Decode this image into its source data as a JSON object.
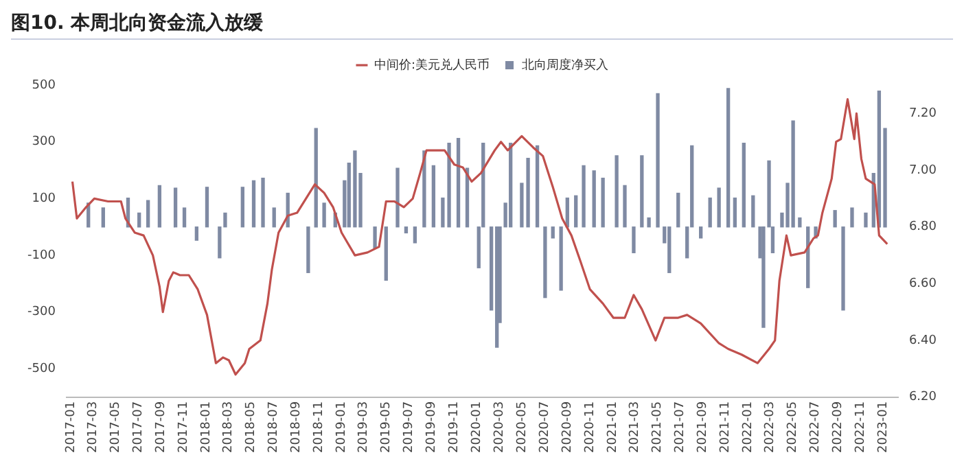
{
  "chart_data": {
    "type": "bar",
    "title": "图10. 本周北向资金流入放缓",
    "xlim": [
      "2016-12-20",
      "2023-02-10"
    ],
    "xticks": [
      "2017-01",
      "2017-03",
      "2017-05",
      "2017-07",
      "2017-09",
      "2017-11",
      "2018-01",
      "2018-03",
      "2018-05",
      "2018-07",
      "2018-09",
      "2018-11",
      "2019-01",
      "2019-03",
      "2019-05",
      "2019-07",
      "2019-09",
      "2019-11",
      "2020-01",
      "2020-03",
      "2020-05",
      "2020-07",
      "2020-09",
      "2020-11",
      "2021-01",
      "2021-03",
      "2021-05",
      "2021-07",
      "2021-09",
      "2021-11",
      "2022-01",
      "2022-03",
      "2022-05",
      "2022-07",
      "2022-09",
      "2022-11",
      "2023-01"
    ],
    "ylim": [
      -600,
      500
    ],
    "yticks": [
      500,
      300,
      100,
      -100,
      -300,
      -500
    ],
    "y2lim": [
      6.2,
      7.3
    ],
    "y2ticks": [
      {
        "value": 6.2,
        "label": "6.20"
      },
      {
        "value": 6.4,
        "label": "6.40"
      },
      {
        "value": 6.6,
        "label": "6.60"
      },
      {
        "value": 6.8,
        "label": "6.80"
      },
      {
        "value": 7.0,
        "label": "7.00"
      },
      {
        "value": 7.2,
        "label": "7.20"
      }
    ],
    "grid": false,
    "legend": "top",
    "series": [
      {
        "name": "中间价:美元兑人民币",
        "type": "line",
        "axis": "y2",
        "color": "#c0504d",
        "x": [
          "2017-01-05",
          "2017-01-17",
          "2017-02-11",
          "2017-03-05",
          "2017-04-11",
          "2017-05-16",
          "2017-05-28",
          "2017-06-22",
          "2017-07-16",
          "2017-08-10",
          "2017-08-28",
          "2017-09-06",
          "2017-09-22",
          "2017-10-04",
          "2017-10-22",
          "2017-11-15",
          "2017-12-09",
          "2018-01-03",
          "2018-01-27",
          "2018-02-15",
          "2018-03-03",
          "2018-03-21",
          "2018-04-15",
          "2018-04-27",
          "2018-05-27",
          "2018-06-15",
          "2018-06-27",
          "2018-07-15",
          "2018-08-09",
          "2018-09-03",
          "2018-09-27",
          "2018-10-21",
          "2018-11-15",
          "2018-12-09",
          "2019-01-01",
          "2019-02-06",
          "2019-03-12",
          "2019-04-12",
          "2019-05-01",
          "2019-05-24",
          "2019-06-18",
          "2019-07-12",
          "2019-08-01",
          "2019-08-18",
          "2019-09-12",
          "2019-10-06",
          "2019-11-01",
          "2019-11-24",
          "2019-12-18",
          "2020-01-12",
          "2020-02-18",
          "2020-03-06",
          "2020-03-24",
          "2020-05-01",
          "2020-06-01",
          "2020-06-27",
          "2020-07-24",
          "2020-08-18",
          "2020-09-12",
          "2020-10-06",
          "2020-11-01",
          "2020-12-06",
          "2021-01-03",
          "2021-02-03",
          "2021-02-27",
          "2021-03-21",
          "2021-04-27",
          "2021-05-21",
          "2021-06-27",
          "2021-07-21",
          "2021-08-27",
          "2021-10-15",
          "2021-11-09",
          "2021-12-15",
          "2022-01-27",
          "2022-02-27",
          "2022-03-15",
          "2022-03-27",
          "2022-04-15",
          "2022-04-27",
          "2022-06-03",
          "2022-06-27",
          "2022-07-09",
          "2022-07-21",
          "2022-08-15",
          "2022-08-27",
          "2022-09-09",
          "2022-09-27",
          "2022-10-15",
          "2022-10-21",
          "2022-11-03",
          "2022-11-15",
          "2022-12-09",
          "2022-12-21",
          "2023-01-12"
        ],
        "values": [
          6.96,
          6.83,
          6.87,
          6.9,
          6.89,
          6.89,
          6.83,
          6.78,
          6.77,
          6.7,
          6.59,
          6.5,
          6.61,
          6.64,
          6.63,
          6.63,
          6.58,
          6.49,
          6.32,
          6.34,
          6.33,
          6.28,
          6.32,
          6.37,
          6.4,
          6.53,
          6.65,
          6.78,
          6.84,
          6.85,
          6.9,
          6.95,
          6.92,
          6.87,
          6.78,
          6.7,
          6.71,
          6.73,
          6.89,
          6.89,
          6.87,
          6.9,
          6.99,
          7.07,
          7.07,
          7.07,
          7.02,
          7.01,
          6.96,
          6.99,
          7.07,
          7.1,
          7.07,
          7.12,
          7.08,
          7.05,
          6.94,
          6.83,
          6.77,
          6.68,
          6.58,
          6.53,
          6.48,
          6.48,
          6.56,
          6.51,
          6.4,
          6.48,
          6.48,
          6.49,
          6.46,
          6.39,
          6.37,
          6.35,
          6.32,
          6.37,
          6.4,
          6.61,
          6.77,
          6.7,
          6.71,
          6.76,
          6.77,
          6.85,
          6.97,
          7.1,
          7.11,
          7.25,
          7.11,
          7.2,
          7.04,
          6.97,
          6.95,
          6.77,
          6.74
        ]
      },
      {
        "name": "北向周度净买入",
        "color": "#7f8aa3",
        "x": [
          "2017-02-17",
          "2017-03-29",
          "2017-06-04",
          "2017-07-04",
          "2017-07-28",
          "2017-08-28",
          "2017-10-10",
          "2017-11-03",
          "2017-12-06",
          "2018-01-03",
          "2018-02-06",
          "2018-02-21",
          "2018-04-09",
          "2018-05-09",
          "2018-06-03",
          "2018-07-03",
          "2018-08-09",
          "2018-10-03",
          "2018-10-24",
          "2018-11-15",
          "2018-12-15",
          "2019-01-09",
          "2019-01-21",
          "2019-02-06",
          "2019-02-21",
          "2019-04-01",
          "2019-05-01",
          "2019-06-01",
          "2019-06-24",
          "2019-07-18",
          "2019-08-12",
          "2019-09-06",
          "2019-10-01",
          "2019-10-18",
          "2019-11-12",
          "2019-12-06",
          "2020-01-06",
          "2020-01-18",
          "2020-02-09",
          "2020-02-24",
          "2020-03-03",
          "2020-03-18",
          "2020-04-01",
          "2020-05-01",
          "2020-05-18",
          "2020-06-12",
          "2020-07-03",
          "2020-07-24",
          "2020-08-15",
          "2020-09-01",
          "2020-09-24",
          "2020-10-15",
          "2020-11-12",
          "2020-12-06",
          "2021-01-12",
          "2021-02-03",
          "2021-02-27",
          "2021-03-21",
          "2021-04-09",
          "2021-05-03",
          "2021-05-21",
          "2021-06-03",
          "2021-06-27",
          "2021-07-21",
          "2021-08-03",
          "2021-08-27",
          "2021-09-21",
          "2021-10-15",
          "2021-11-09",
          "2021-11-27",
          "2021-12-21",
          "2022-01-15",
          "2022-02-03",
          "2022-02-12",
          "2022-02-27",
          "2022-03-09",
          "2022-04-03",
          "2022-04-18",
          "2022-05-03",
          "2022-05-21",
          "2022-06-12",
          "2022-07-03",
          "2022-08-24",
          "2022-09-15",
          "2022-10-09",
          "2022-11-15",
          "2022-12-06",
          "2022-12-21",
          "2023-01-06"
        ],
        "values": [
          84,
          67,
          102,
          49,
          93,
          146,
          137,
          67,
          -47,
          140,
          -109,
          49,
          140,
          163,
          172,
          67,
          119,
          -161,
          347,
          84,
          49,
          163,
          225,
          268,
          189,
          -74,
          -188,
          207,
          -21,
          -56,
          268,
          216,
          102,
          295,
          312,
          207,
          -144,
          295,
          -293,
          -424,
          -337,
          84,
          295,
          154,
          242,
          286,
          -249,
          -39,
          -223,
          102,
          110,
          216,
          198,
          172,
          251,
          146,
          -91,
          251,
          32,
          470,
          -56,
          -161,
          119,
          -109,
          286,
          -39,
          102,
          137,
          488,
          102,
          295,
          110,
          -109,
          -354,
          233,
          -91,
          49,
          154,
          374,
          32,
          -214,
          -39,
          58,
          -293,
          67,
          49,
          189,
          479,
          347
        ]
      }
    ]
  }
}
